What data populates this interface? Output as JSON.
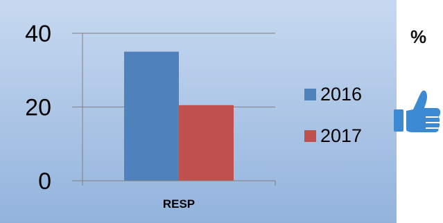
{
  "chart_data": {
    "type": "bar",
    "categories": [
      "RESP"
    ],
    "series": [
      {
        "name": "2016",
        "values": [
          35
        ],
        "color": "#4f81bd"
      },
      {
        "name": "2017",
        "values": [
          20.5
        ],
        "color": "#c0504d"
      }
    ],
    "title": "",
    "xlabel": "",
    "ylabel": "",
    "ylim": [
      0,
      40
    ],
    "yticks": [
      "0",
      "20",
      "40"
    ],
    "grid": true,
    "legend": "right",
    "background": [
      "#c7d9f0",
      "#93b3dd"
    ]
  },
  "unit_label": "%",
  "icon": "thumbs-up-icon",
  "icon_color": "#3b8ad2"
}
